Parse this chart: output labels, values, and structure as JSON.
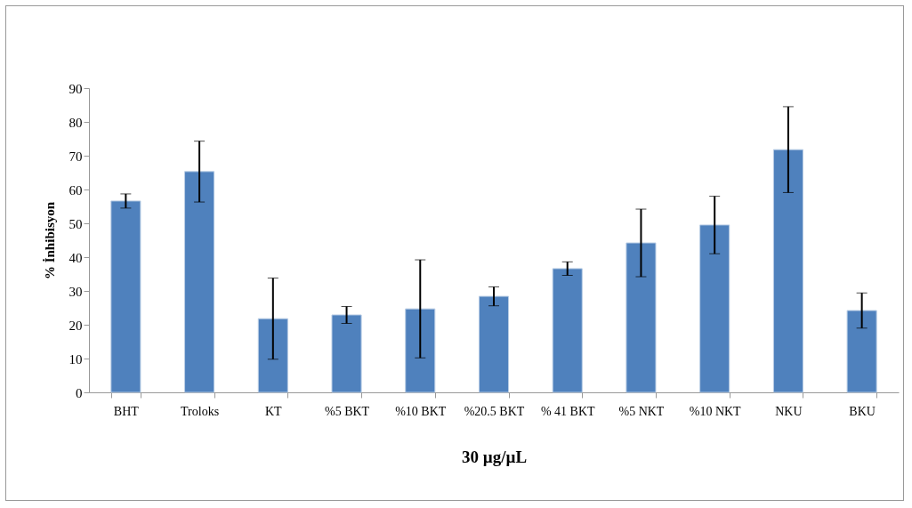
{
  "chart_data": {
    "type": "bar",
    "xlabel": "30 µg/µL",
    "ylabel": "% İnhibisyon",
    "categories": [
      "BHT",
      "Troloks",
      "KT",
      "%5 BKT",
      "%10 BKT",
      "%20.5 BKT",
      "% 41 BKT",
      "%5 NKT",
      "%10 NKT",
      "NKU",
      "BKU"
    ],
    "values": [
      56.6,
      65.3,
      21.8,
      22.9,
      24.7,
      28.4,
      36.6,
      44.2,
      49.5,
      71.8,
      24.2
    ],
    "errors": [
      2.1,
      9,
      12,
      2.5,
      14.5,
      2.8,
      2,
      10,
      8.5,
      12.7,
      5.2
    ],
    "color": "#4f81bd",
    "ylim": [
      0,
      90
    ],
    "yticks": [
      0,
      10,
      20,
      30,
      40,
      50,
      60,
      70,
      80,
      90
    ],
    "grid": false
  }
}
